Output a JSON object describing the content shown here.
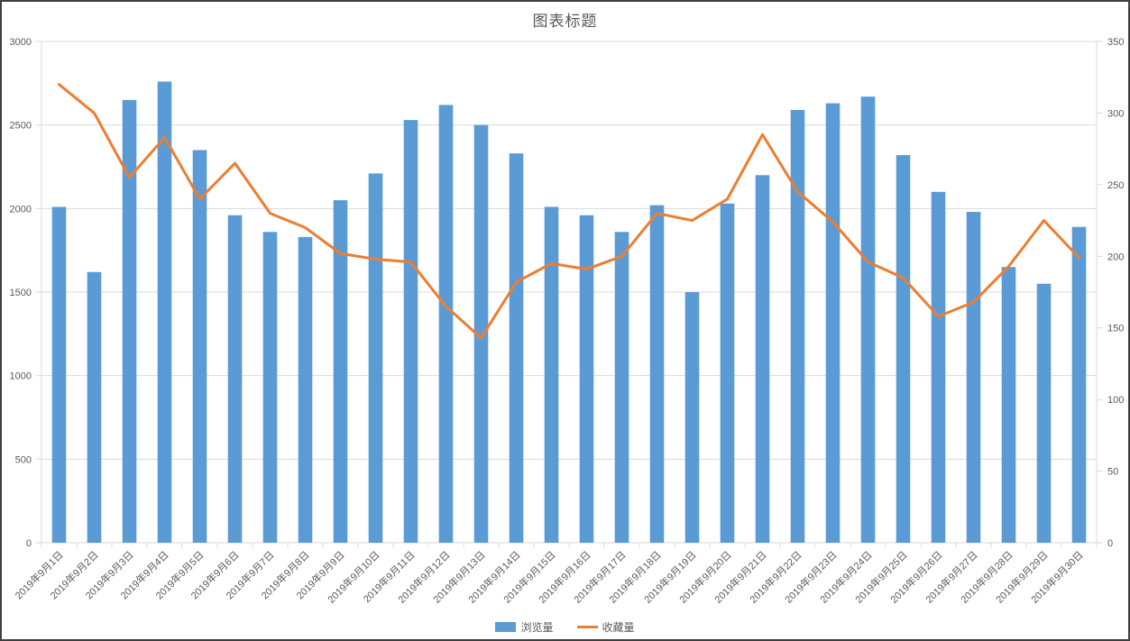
{
  "frame": {
    "title_label": "图表标题"
  },
  "colors": {
    "bar": "#5B9BD5",
    "line": "#ED7D31",
    "grid": "#D9D9D9",
    "axis_line": "#D9D9D9",
    "text": "#595959",
    "border": "#3f3f3f"
  },
  "chart_data": {
    "type": "combo",
    "title": "图表标题",
    "grid": true,
    "legend_position": "bottom",
    "categories": [
      "2019年9月1日",
      "2019年9月2日",
      "2019年9月3日",
      "2019年9月4日",
      "2019年9月5日",
      "2019年9月6日",
      "2019年9月7日",
      "2019年9月8日",
      "2019年9月9日",
      "2019年9月10日",
      "2019年9月11日",
      "2019年9月12日",
      "2019年9月13日",
      "2019年9月14日",
      "2019年9月15日",
      "2019年9月16日",
      "2019年9月17日",
      "2019年9月18日",
      "2019年9月19日",
      "2019年9月20日",
      "2019年9月21日",
      "2019年9月22日",
      "2019年9月23日",
      "2019年9月24日",
      "2019年9月25日",
      "2019年9月26日",
      "2019年9月27日",
      "2019年9月28日",
      "2019年9月29日",
      "2019年9月30日"
    ],
    "series": [
      {
        "name": "浏览量",
        "type": "bar",
        "axis": "left",
        "color": "#5B9BD5",
        "values": [
          2010,
          1620,
          2650,
          2760,
          2350,
          1960,
          1860,
          1830,
          2050,
          2210,
          2530,
          2620,
          2500,
          2330,
          2010,
          1960,
          1860,
          2020,
          1500,
          2030,
          2200,
          2590,
          2630,
          2670,
          2320,
          2100,
          1980,
          1650,
          1550,
          1890
        ]
      },
      {
        "name": "收藏量",
        "type": "line",
        "axis": "right",
        "color": "#ED7D31",
        "values": [
          320,
          300,
          255,
          283,
          240,
          265,
          230,
          220,
          202,
          198,
          196,
          165,
          143,
          182,
          195,
          191,
          200,
          230,
          225,
          240,
          285,
          245,
          224,
          196,
          185,
          158,
          168,
          193,
          225,
          199
        ]
      }
    ],
    "left_axis": {
      "min": 0,
      "max": 3000,
      "step": 500
    },
    "right_axis": {
      "min": 0,
      "max": 350,
      "step": 50
    }
  }
}
